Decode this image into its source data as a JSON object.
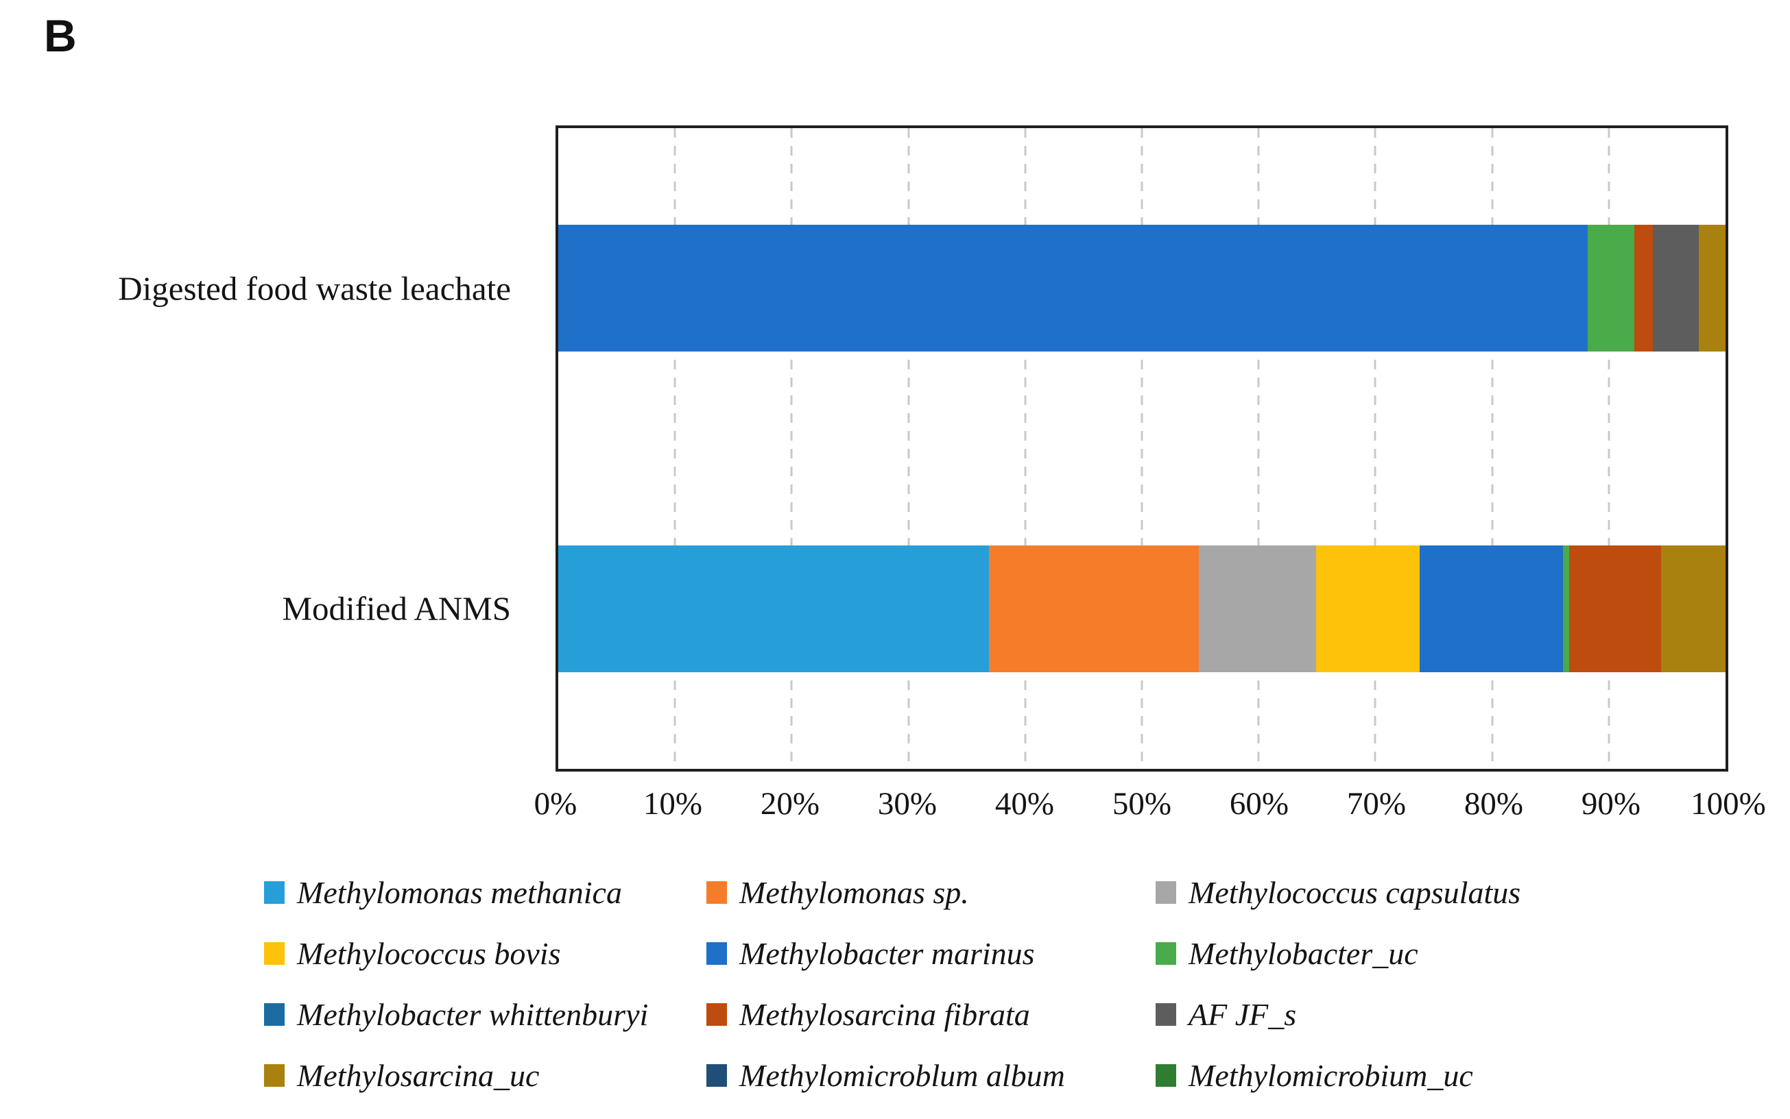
{
  "panel_label": "B",
  "chart_data": {
    "type": "bar",
    "orientation": "horizontal-stacked",
    "title": "",
    "xlabel": "",
    "ylabel": "",
    "xlim": [
      0,
      100
    ],
    "x_ticks": [
      "0%",
      "10%",
      "20%",
      "30%",
      "40%",
      "50%",
      "60%",
      "70%",
      "80%",
      "90%",
      "100%"
    ],
    "x_tick_values": [
      0,
      10,
      20,
      30,
      40,
      50,
      60,
      70,
      80,
      90,
      100
    ],
    "grid": "dashed-vertical",
    "gridline_color": "#c9c9c9",
    "legend_position": "bottom",
    "categories": [
      "Digested food waste leachate",
      "Modified ANMS"
    ],
    "series": [
      {
        "name": "Methylomonas methanica",
        "color": "#269FD9",
        "values": [
          0,
          36.9
        ]
      },
      {
        "name": "Methylomonas sp.",
        "color": "#F57D2A",
        "values": [
          0,
          18.0
        ]
      },
      {
        "name": "Methylococcus capsulatus",
        "color": "#A7A7A7",
        "values": [
          0,
          10.0
        ]
      },
      {
        "name": "Methylococcus bovis",
        "color": "#FEC20A",
        "values": [
          0,
          8.9
        ]
      },
      {
        "name": "Methylobacter marinus",
        "color": "#1F70C9",
        "values": [
          88.2,
          12.3
        ]
      },
      {
        "name": "Methylobacter_uc",
        "color": "#49AB49",
        "values": [
          4.0,
          0.5
        ]
      },
      {
        "name": "Methylobacter whittenburyi",
        "color": "#1B6CA2",
        "values": [
          0,
          0
        ]
      },
      {
        "name": "Methylosarcina fibrata",
        "color": "#BE4C0E",
        "values": [
          1.6,
          7.9
        ]
      },
      {
        "name": "AF JF_s",
        "color": "#5D5D5D",
        "values": [
          3.9,
          0
        ]
      },
      {
        "name": "Methylosarcina_uc",
        "color": "#A9810F",
        "values": [
          2.3,
          5.5
        ]
      },
      {
        "name": "Methylomicroblum album",
        "color": "#1F4E79",
        "values": [
          0,
          0
        ]
      },
      {
        "name": "Methylomicrobium_uc",
        "color": "#2E7D32",
        "values": [
          0,
          0
        ]
      }
    ],
    "bar_thickness_fraction": 0.198
  }
}
